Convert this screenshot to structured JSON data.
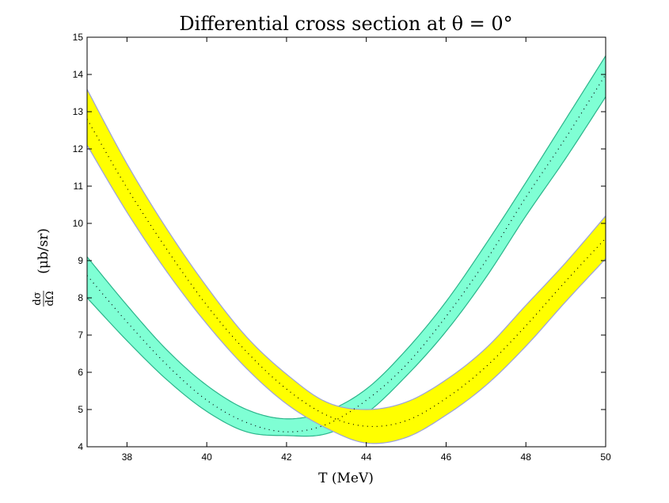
{
  "chart_data": {
    "type": "area",
    "title": "Differential cross section at θ = 0°",
    "xlabel": "T (MeV)",
    "ylabel": "(μb/sr)",
    "ylabel_fraction": {
      "numerator": "dσ",
      "denominator": "dΩ"
    },
    "xlim": [
      37,
      50
    ],
    "ylim": [
      4,
      15
    ],
    "x_ticks": [
      38,
      40,
      42,
      44,
      46,
      48,
      50
    ],
    "y_ticks": [
      4,
      5,
      6,
      7,
      8,
      9,
      10,
      11,
      12,
      13,
      14,
      15
    ],
    "grid": false,
    "legend": "none",
    "series": [
      {
        "color": "#7fffd4",
        "edge_color": "#2ab58a",
        "x": [
          37,
          38,
          39,
          40,
          41,
          42,
          43,
          44,
          45,
          46,
          47,
          48,
          49,
          50
        ],
        "upper": [
          9.1,
          7.8,
          6.6,
          5.65,
          5.0,
          4.75,
          4.95,
          5.55,
          6.6,
          7.9,
          9.45,
          11.1,
          12.8,
          14.5
        ],
        "center": [
          8.6,
          7.35,
          6.2,
          5.25,
          4.65,
          4.4,
          4.6,
          5.25,
          6.2,
          7.5,
          9.0,
          10.7,
          12.3,
          14.0
        ],
        "lower": [
          8.0,
          6.85,
          5.8,
          4.95,
          4.4,
          4.3,
          4.35,
          4.9,
          5.9,
          7.1,
          8.55,
          10.2,
          11.75,
          13.4
        ]
      },
      {
        "color": "#ffff00",
        "edge_color": "#9aa0dc",
        "x": [
          37,
          38,
          39,
          40,
          41,
          42,
          43,
          44,
          45,
          46,
          47,
          48,
          49,
          50
        ],
        "upper": [
          13.6,
          11.6,
          9.85,
          8.3,
          6.95,
          5.95,
          5.2,
          5.0,
          5.2,
          5.8,
          6.65,
          7.8,
          8.95,
          10.2
        ],
        "center": [
          12.8,
          10.95,
          9.3,
          7.8,
          6.55,
          5.55,
          4.85,
          4.55,
          4.7,
          5.3,
          6.15,
          7.25,
          8.45,
          9.6
        ],
        "lower": [
          12.1,
          10.3,
          8.7,
          7.3,
          6.1,
          5.15,
          4.5,
          4.1,
          4.25,
          4.85,
          5.65,
          6.7,
          7.9,
          9.05
        ]
      }
    ]
  }
}
